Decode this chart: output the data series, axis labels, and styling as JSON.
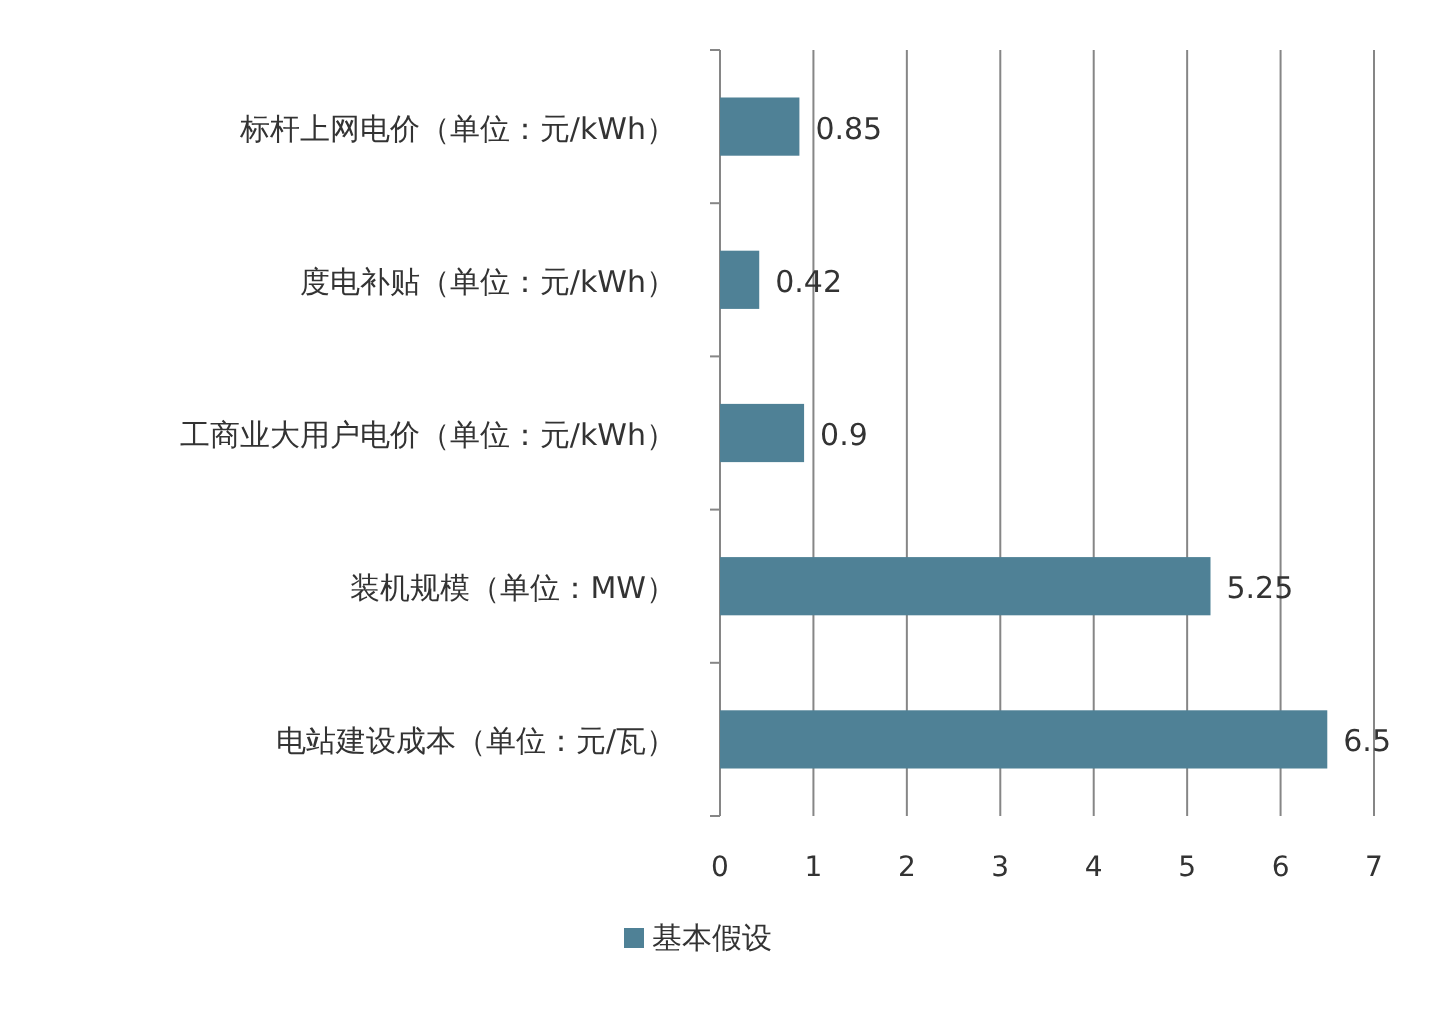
{
  "chart_data": {
    "type": "bar",
    "orientation": "horizontal",
    "categories": [
      "标杆上网电价（单位：元/kWh）",
      "度电补贴（单位：元/kWh）",
      "工商业大用户电价（单位：元/kWh）",
      "装机规模（单位：MW）",
      "电站建设成本（单位：元/瓦）"
    ],
    "series": [
      {
        "name": "基本假设",
        "color": "#4f8196",
        "values": [
          0.85,
          0.42,
          0.9,
          5.25,
          6.5
        ]
      }
    ],
    "xlim": [
      0,
      7
    ],
    "xticks": [
      0,
      1,
      2,
      3,
      4,
      5,
      6,
      7
    ],
    "grid": "x",
    "legend": "bottom",
    "data_labels": true
  }
}
